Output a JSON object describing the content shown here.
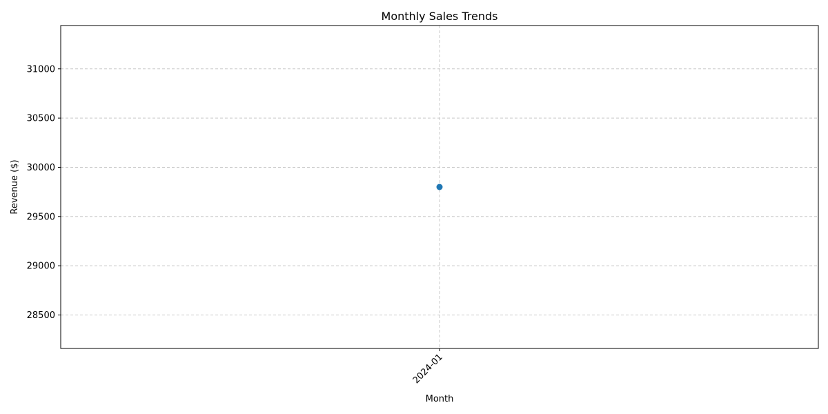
{
  "chart_data": {
    "type": "line",
    "title": "Monthly Sales Trends",
    "xlabel": "Month",
    "ylabel": "Revenue ($)",
    "categories": [
      "2024-01"
    ],
    "series": [
      {
        "values": [
          29800
        ],
        "color": "#1f77b4",
        "marker": "circle"
      }
    ],
    "yticks": [
      28500,
      29000,
      29500,
      30000,
      30500,
      31000
    ],
    "ylim": [
      28160,
      31440
    ],
    "grid": true,
    "grid_style": "dashed",
    "xtick_rotation": 45,
    "colors": {
      "grid": "#c8c8c8",
      "axes": "#000000"
    }
  }
}
